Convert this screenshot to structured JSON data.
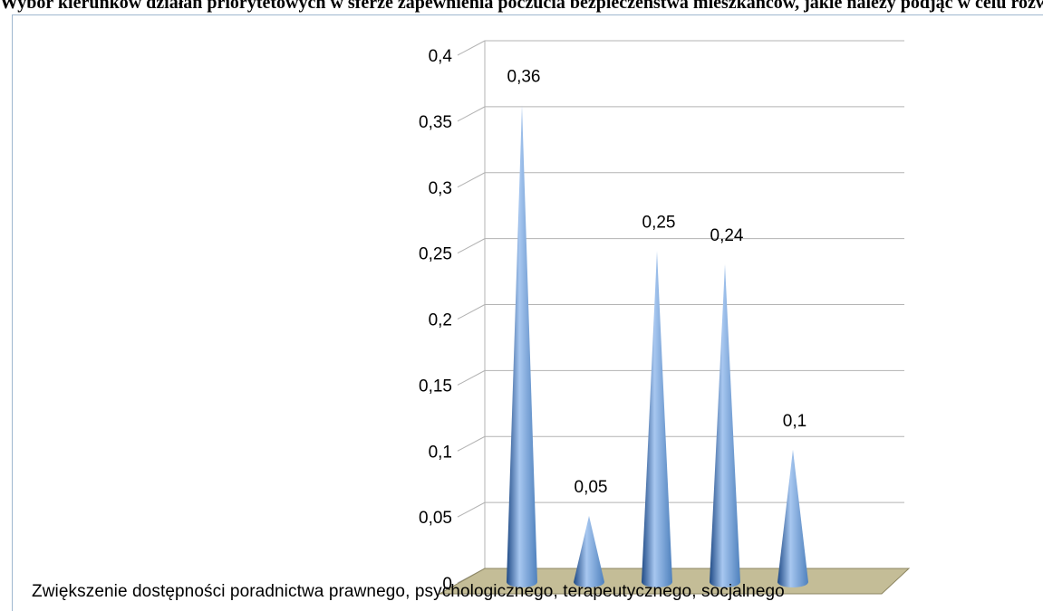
{
  "header": {
    "title": "Wybór kierunków działań priorytetowych w sferze zapewnienia poczucia bezpieczeństwa mieszkańców, jakie należy podjąć w celu rozwiązania problemów gminy"
  },
  "chart_data": {
    "type": "bar",
    "shape": "cone-3d",
    "title": "",
    "xlabel": "",
    "ylabel": "",
    "categories": [
      "Zwiększenie dostępności poradnictwa prawnego, psychologicznego, terapeutycznego, socjalnego",
      "",
      "",
      "",
      ""
    ],
    "category_label_text": "Zwiększenie dostępności poradnictwa prawnego, psychologicznego, terapeutycznego, socjalnego",
    "values": [
      0.36,
      0.05,
      0.25,
      0.24,
      0.1
    ],
    "data_labels": [
      "0,36",
      "0,05",
      "0,25",
      "0,24",
      "0,1"
    ],
    "ylim": [
      0,
      0.4
    ],
    "yticks": [
      0,
      0.05,
      0.1,
      0.15,
      0.2,
      0.25,
      0.3,
      0.35,
      0.4
    ],
    "ytick_labels": [
      "0",
      "0,05",
      "0,1",
      "0,15",
      "0,2",
      "0,25",
      "0,3",
      "0,35",
      "0,4"
    ],
    "grid": true,
    "legend": "none",
    "colors": {
      "bar": "#4f81bd",
      "bar_highlight": "#a7c7f0",
      "bar_shadow": "#1f4a86",
      "floor": "#c4bd97",
      "floor_edge": "#8c8560",
      "grid": "#b3b3b3"
    }
  }
}
